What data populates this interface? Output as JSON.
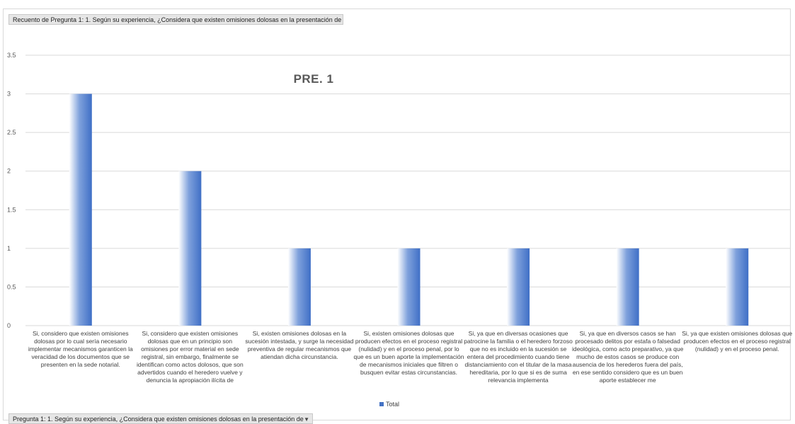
{
  "pivot": {
    "top_field": "Recuento de Pregunta 1: 1. Según su experiencia, ¿Considera que existen omisiones dolosas en la presentación de",
    "bottom_field": "Pregunta 1: 1. Según su experiencia, ¿Considera que existen omisiones dolosas en la presentación de",
    "dropdown_icon": "dropdown-arrow-icon"
  },
  "chart_data": {
    "type": "bar",
    "title": "PRE. 1",
    "categories": [
      "Si, considero que existen omisiones dolosas por lo cual sería necesario implementar mecanismos garanticen la veracidad de los documentos que se presenten en la sede notarial.",
      "Si, considero que existen omisiones dolosas que en un principio son omisiones por error material en sede registral, sin embargo, finalmente se identifican como actos dolosos, que son advertidos cuando el heredero vuelve y denuncia la apropiación ilícita de",
      "Si, existen omisiones dolosas en la sucesión intestada, y surge la necesidad preventiva de regular mecanismos que atiendan dicha circunstancia.",
      "Si, existen omisiones dolosas que producen efectos en el proceso registral (nulidad) y en el proceso penal, por lo que es un buen aporte la implementación de mecanismos iniciales que filtren o busquen evitar estas circunstancias.",
      "Si, ya que en diversas ocasiones que patrocine la familia o el heredero forzoso que no es incluido en la sucesión se entera del procedimiento cuando tiene distanciamiento con el titular de la masa hereditaria, por lo que si es de suma relevancia implementa",
      "Si, ya que en diversos casos se han procesado delitos por estafa o falsedad ideológica, como acto preparativo, ya que mucho de estos casos se produce con ausencia de los herederos fuera del país, en ese sentido considero que es un buen aporte establecer me",
      "Si, ya que existen omisiones dolosas que producen efectos en el proceso registral (nulidad) y en el proceso penal."
    ],
    "series": [
      {
        "name": "Total",
        "values": [
          3,
          2,
          1,
          1,
          1,
          1,
          1
        ]
      }
    ],
    "ylim": [
      0,
      3.5
    ],
    "yticks": [
      "0",
      "0.5",
      "1",
      "1.5",
      "2",
      "2.5",
      "3",
      "3.5"
    ],
    "grid": true,
    "legend_position": "bottom",
    "colors": {
      "bar": "#4472c4",
      "grid": "#d9d9d9",
      "axis_text": "#595959"
    }
  }
}
